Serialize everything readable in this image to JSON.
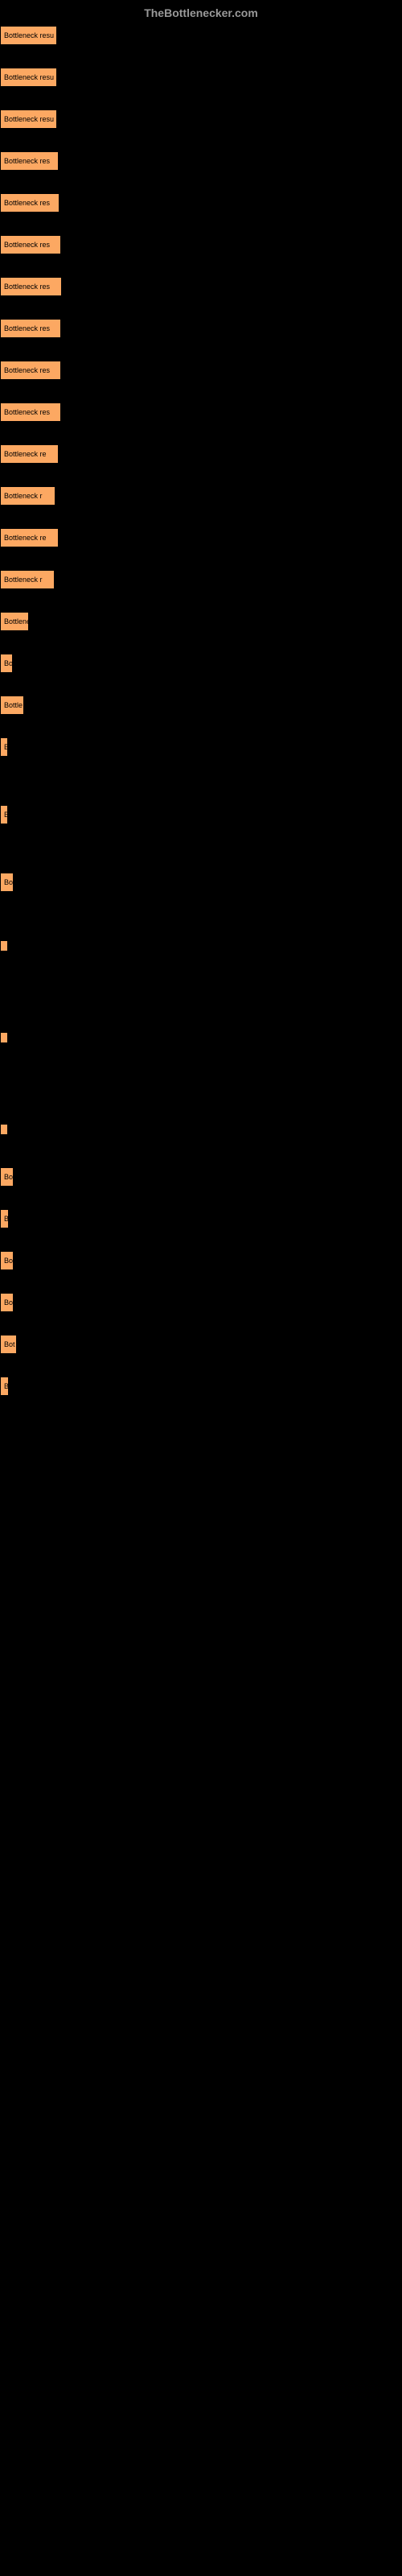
{
  "header": {
    "title": "TheBottlenecker.com"
  },
  "items": [
    {
      "label": "Bottleneck resu",
      "width": 71
    },
    {
      "label": "Bottleneck resu",
      "width": 71
    },
    {
      "label": "Bottleneck resu",
      "width": 71
    },
    {
      "label": "Bottleneck res",
      "width": 73
    },
    {
      "label": "Bottleneck res",
      "width": 74
    },
    {
      "label": "Bottleneck res",
      "width": 76
    },
    {
      "label": "Bottleneck res",
      "width": 77
    },
    {
      "label": "Bottleneck res",
      "width": 76
    },
    {
      "label": "Bottleneck res",
      "width": 76
    },
    {
      "label": "Bottleneck res",
      "width": 76
    },
    {
      "label": "Bottleneck re",
      "width": 73
    },
    {
      "label": "Bottleneck r",
      "width": 69
    },
    {
      "label": "Bottleneck re",
      "width": 73
    },
    {
      "label": "Bottleneck r",
      "width": 68
    },
    {
      "label": "Bottlene",
      "width": 36
    },
    {
      "label": "Bo",
      "width": 16
    },
    {
      "label": "Bottle",
      "width": 30
    },
    {
      "label": "B",
      "width": 8
    },
    {
      "label": "B",
      "width": 8
    },
    {
      "label": "Bo",
      "width": 17
    },
    {
      "label": "",
      "width": 4
    },
    {
      "label": "",
      "width": 4
    },
    {
      "label": "",
      "width": 2
    },
    {
      "label": "Bo",
      "width": 17
    },
    {
      "label": "B",
      "width": 11
    },
    {
      "label": "Bo",
      "width": 17
    },
    {
      "label": "Bo",
      "width": 17
    },
    {
      "label": "Bot",
      "width": 21
    },
    {
      "label": "B",
      "width": 11
    }
  ],
  "colors": {
    "background": "#000000",
    "itemBackground": "#fca862",
    "headerText": "#999999",
    "itemText": "#000000"
  }
}
